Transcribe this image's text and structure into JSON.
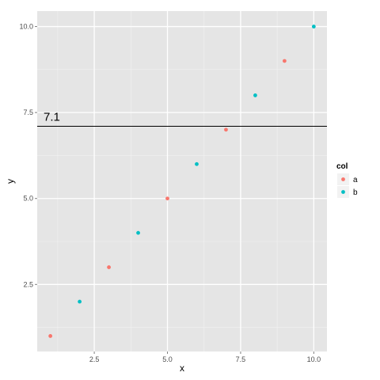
{
  "chart_data": {
    "type": "scatter",
    "xlabel": "x",
    "ylabel": "y",
    "xlim": [
      0.55,
      10.45
    ],
    "ylim": [
      0.55,
      10.45
    ],
    "x_ticks": [
      2.5,
      5.0,
      7.5,
      10.0
    ],
    "x_tick_labels": [
      "2.5",
      "5.0",
      "7.5",
      "10.0"
    ],
    "y_ticks": [
      2.5,
      5.0,
      7.5,
      10.0
    ],
    "y_tick_labels": [
      "2.5",
      "5.0",
      "7.5",
      "10.0"
    ],
    "grid": true,
    "legend": {
      "title": "col",
      "position": "right",
      "entries": [
        "a",
        "b"
      ]
    },
    "series": [
      {
        "name": "a",
        "color": "#F8766D",
        "x": [
          1,
          3,
          5,
          7,
          9
        ],
        "y": [
          1,
          3,
          5,
          7,
          9
        ]
      },
      {
        "name": "b",
        "color": "#00BFC4",
        "x": [
          2,
          4,
          6,
          8,
          10
        ],
        "y": [
          2,
          4,
          6,
          8,
          10
        ]
      }
    ],
    "hline": {
      "y": 7.1,
      "label": "7.1",
      "color": "#000000"
    },
    "panel_background": "#E5E5E5",
    "grid_color": "#FFFFFF"
  }
}
